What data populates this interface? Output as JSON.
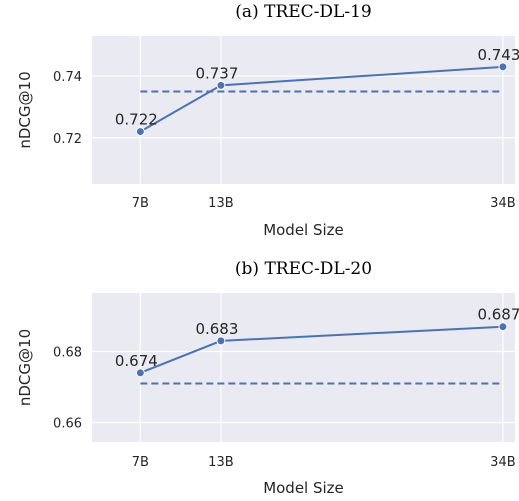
{
  "chart_data": [
    {
      "type": "line",
      "title": "(a) TREC-DL-19",
      "xlabel": "Model Size",
      "ylabel": "nDCG@10",
      "x": [
        7,
        13,
        34
      ],
      "x_tick_labels": [
        "7B",
        "13B",
        "34B"
      ],
      "y_ticks": [
        0.72,
        0.74
      ],
      "y_tick_labels": [
        "0.72",
        "0.74"
      ],
      "ylim": [
        0.705,
        0.753
      ],
      "xlim": [
        3.4,
        34.9
      ],
      "series": [
        {
          "values": [
            0.722,
            0.737,
            0.743
          ],
          "labels": [
            "0.722",
            "0.737",
            "0.743"
          ],
          "color": "#4c72b0"
        }
      ],
      "reference_line": {
        "value": 0.735,
        "style": "dashed",
        "color": "#4c72b0"
      },
      "grid": true,
      "background": "#eaeaf2"
    },
    {
      "type": "line",
      "title": "(b) TREC-DL-20",
      "xlabel": "Model Size",
      "ylabel": "nDCG@10",
      "x": [
        7,
        13,
        34
      ],
      "x_tick_labels": [
        "7B",
        "13B",
        "34B"
      ],
      "y_ticks": [
        0.66,
        0.68
      ],
      "y_tick_labels": [
        "0.66",
        "0.68"
      ],
      "ylim": [
        0.6545,
        0.6965
      ],
      "xlim": [
        3.4,
        34.9
      ],
      "series": [
        {
          "values": [
            0.674,
            0.683,
            0.687
          ],
          "labels": [
            "0.674",
            "0.683",
            "0.687"
          ],
          "color": "#4c72b0"
        }
      ],
      "reference_line": {
        "value": 0.671,
        "style": "dashed",
        "color": "#4c72b0"
      },
      "grid": true,
      "background": "#eaeaf2"
    }
  ]
}
